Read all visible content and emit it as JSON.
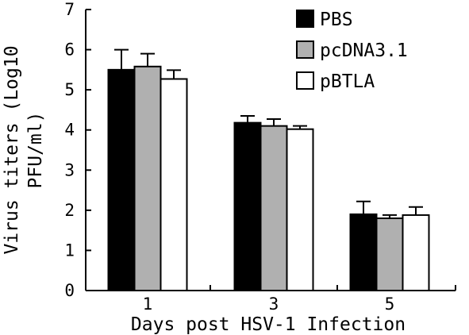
{
  "chart_data": {
    "type": "bar",
    "title": "",
    "xlabel": "Days post HSV-1 Infection",
    "ylabel_lines": [
      "Virus titers (Log10",
      "PFU/ml)"
    ],
    "categories": [
      "1",
      "3",
      "5"
    ],
    "ylim": [
      0,
      7
    ],
    "yticks": [
      0,
      1,
      2,
      3,
      4,
      5,
      6,
      7
    ],
    "grid": false,
    "legend_position": "top-right",
    "series": [
      {
        "name": "PBS",
        "color": "#000000",
        "values": [
          5.5,
          4.18,
          1.9
        ],
        "errors": [
          0.5,
          0.17,
          0.32
        ]
      },
      {
        "name": "pcDNA3.1",
        "color": "#b0b0b0",
        "values": [
          5.58,
          4.1,
          1.8
        ],
        "errors": [
          0.32,
          0.17,
          0.08
        ]
      },
      {
        "name": "pBTLA",
        "color": "#ffffff",
        "values": [
          5.27,
          4.02,
          1.88
        ],
        "errors": [
          0.22,
          0.08,
          0.2
        ]
      }
    ]
  }
}
